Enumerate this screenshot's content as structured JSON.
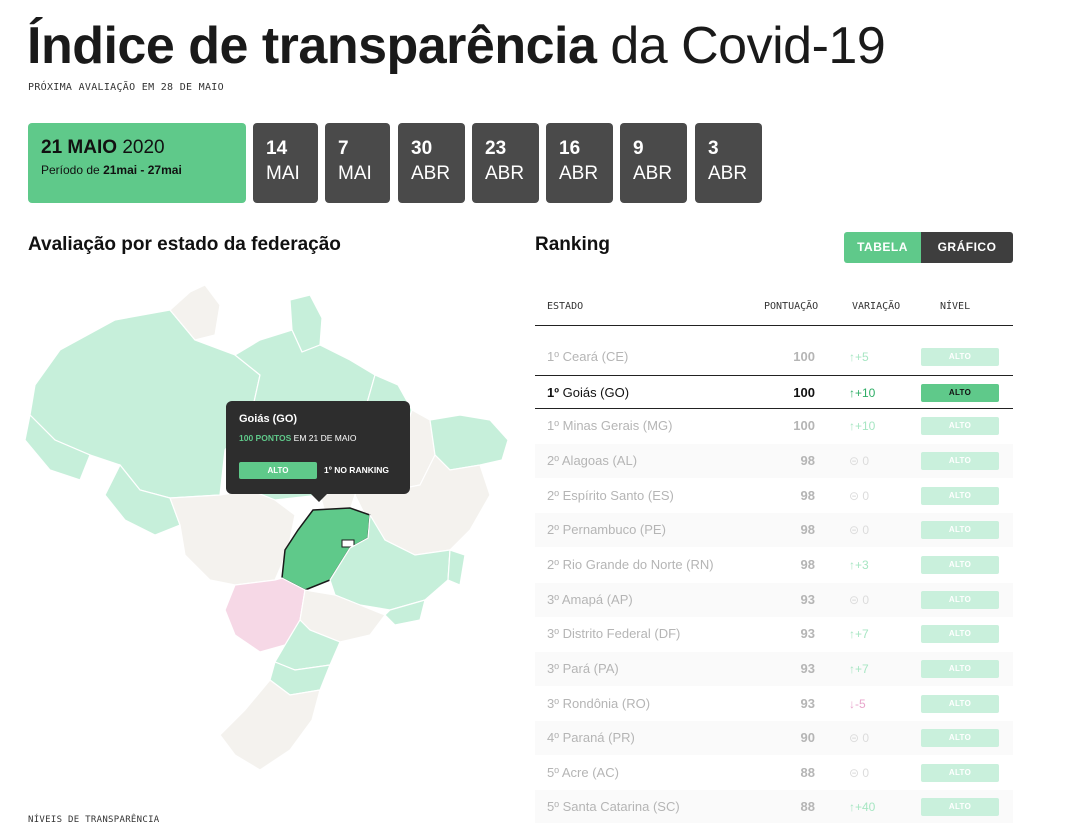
{
  "header": {
    "title_bold": "Índice de transparência",
    "title_light": "da Covid-19",
    "next_eval": "PRÓXIMA AVALIAÇÃO EM 28 DE MAIO"
  },
  "dates": {
    "current": {
      "day_month": "21 MAIO",
      "year": "2020",
      "period_prefix": "Período de",
      "period_range": "21mai - 27mai"
    },
    "past": [
      {
        "day": "14",
        "month": "MAI"
      },
      {
        "day": "7",
        "month": "MAI"
      },
      {
        "day": "30",
        "month": "ABR"
      },
      {
        "day": "23",
        "month": "ABR"
      },
      {
        "day": "16",
        "month": "ABR"
      },
      {
        "day": "9",
        "month": "ABR"
      },
      {
        "day": "3",
        "month": "ABR"
      }
    ]
  },
  "map_section": {
    "title": "Avaliação por estado da federação",
    "legend": "NÍVEIS DE TRANSPARÊNCIA",
    "tooltip": {
      "state": "Goiás (GO)",
      "points": "100 PONTOS",
      "date_text": "EM 21 DE MAIO",
      "level": "ALTO",
      "rank": "1º NO RANKING"
    }
  },
  "ranking": {
    "title": "Ranking",
    "toggle": {
      "table": "TABELA",
      "chart": "GRÁFICO"
    },
    "columns": {
      "state": "ESTADO",
      "score": "PONTUAÇÃO",
      "variation": "VARIAÇÃO",
      "level": "NÍVEL"
    },
    "rows": [
      {
        "rank": "1º",
        "state": "Ceará (CE)",
        "score": "100",
        "variation": "↑+5",
        "var_type": "up",
        "level": "ALTO"
      },
      {
        "rank": "1º",
        "state": "Goiás (GO)",
        "score": "100",
        "variation": "↑+10",
        "var_type": "up",
        "level": "ALTO",
        "selected": true
      },
      {
        "rank": "1º",
        "state": "Minas Gerais (MG)",
        "score": "100",
        "variation": "↑+10",
        "var_type": "up",
        "level": "ALTO"
      },
      {
        "rank": "2º",
        "state": "Alagoas (AL)",
        "score": "98",
        "variation": "⊝ 0",
        "var_type": "zero",
        "level": "ALTO"
      },
      {
        "rank": "2º",
        "state": "Espírito Santo (ES)",
        "score": "98",
        "variation": "⊝ 0",
        "var_type": "zero",
        "level": "ALTO"
      },
      {
        "rank": "2º",
        "state": "Pernambuco (PE)",
        "score": "98",
        "variation": "⊝ 0",
        "var_type": "zero",
        "level": "ALTO"
      },
      {
        "rank": "2º",
        "state": "Rio Grande do Norte (RN)",
        "score": "98",
        "variation": "↑+3",
        "var_type": "up",
        "level": "ALTO"
      },
      {
        "rank": "3º",
        "state": "Amapá (AP)",
        "score": "93",
        "variation": "⊝ 0",
        "var_type": "zero",
        "level": "ALTO"
      },
      {
        "rank": "3º",
        "state": "Distrito Federal (DF)",
        "score": "93",
        "variation": "↑+7",
        "var_type": "up",
        "level": "ALTO"
      },
      {
        "rank": "3º",
        "state": "Pará (PA)",
        "score": "93",
        "variation": "↑+7",
        "var_type": "up",
        "level": "ALTO"
      },
      {
        "rank": "3º",
        "state": "Rondônia (RO)",
        "score": "93",
        "variation": "↓-5",
        "var_type": "down",
        "level": "ALTO"
      },
      {
        "rank": "4º",
        "state": "Paraná (PR)",
        "score": "90",
        "variation": "⊝ 0",
        "var_type": "zero",
        "level": "ALTO"
      },
      {
        "rank": "5º",
        "state": "Acre (AC)",
        "score": "88",
        "variation": "⊝ 0",
        "var_type": "zero",
        "level": "ALTO"
      },
      {
        "rank": "5º",
        "state": "Santa Catarina (SC)",
        "score": "88",
        "variation": "↑+40",
        "var_type": "up",
        "level": "ALTO"
      }
    ]
  },
  "colors": {
    "accent_green": "#5fc98a",
    "light_green": "#c9f0dc",
    "map_green": "#bfeed6",
    "map_neutral": "#f4f2ee",
    "map_pink": "#f6d8e6",
    "dark_button": "#4a4a4a"
  }
}
